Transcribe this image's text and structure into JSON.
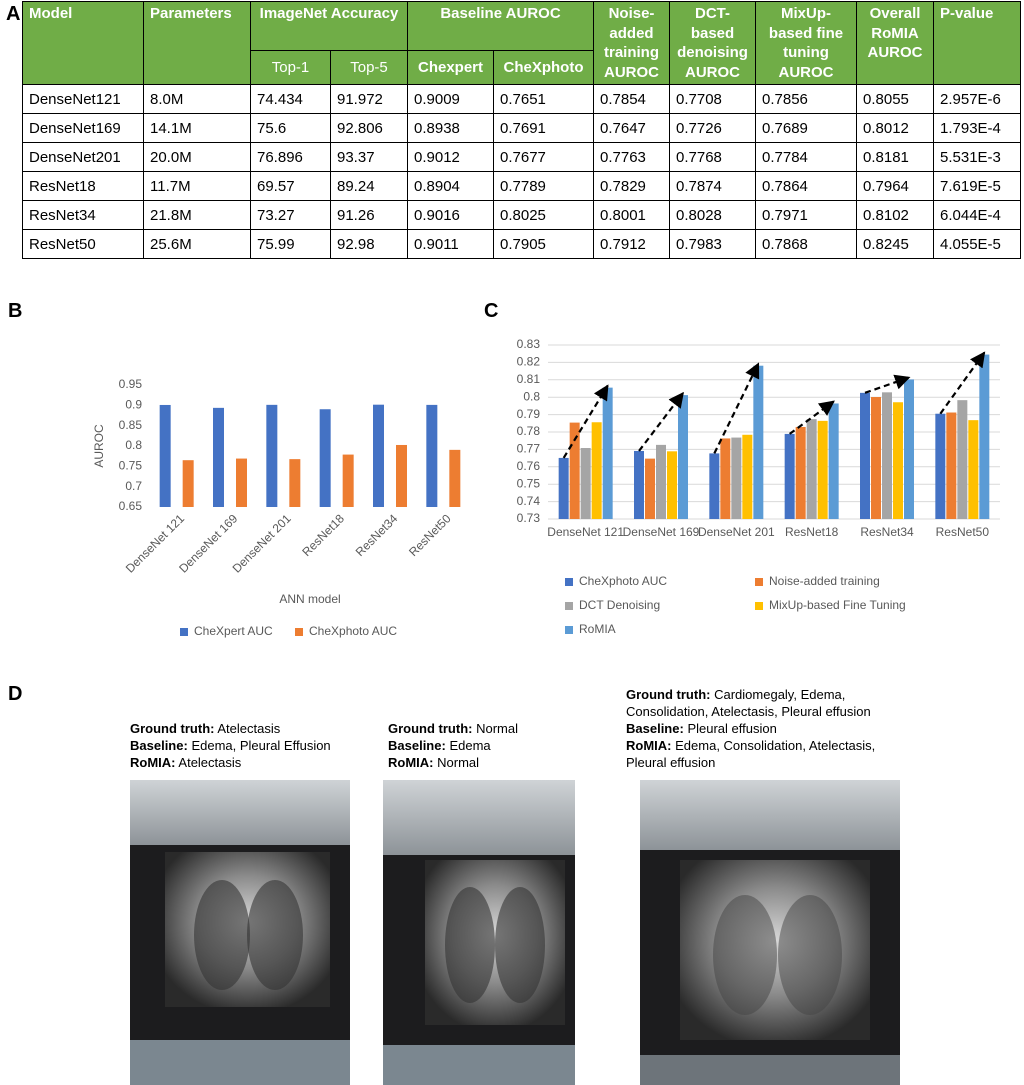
{
  "panel_labels": [
    "A",
    "B",
    "C",
    "D"
  ],
  "table": {
    "header_top": [
      "Model",
      "Parameters",
      "ImageNet Accuracy",
      "Baseline AUROC",
      "Noise-added training AUROC",
      "DCT-based denoising AUROC",
      "MixUp-based fine tuning AUROC",
      "Overall RoMIA AUROC",
      "P-value"
    ],
    "header_sub": [
      "Top-1",
      "Top-5",
      "Chexpert",
      "CheXphoto"
    ],
    "rows": [
      [
        "DenseNet121",
        "8.0M",
        "74.434",
        "91.972",
        "0.9009",
        "0.7651",
        "0.7854",
        "0.7708",
        "0.7856",
        "0.8055",
        "2.957E-6"
      ],
      [
        "DenseNet169",
        "14.1M",
        "75.6",
        "92.806",
        "0.8938",
        "0.7691",
        "0.7647",
        "0.7726",
        "0.7689",
        "0.8012",
        "1.793E-4"
      ],
      [
        "DenseNet201",
        "20.0M",
        "76.896",
        "93.37",
        "0.9012",
        "0.7677",
        "0.7763",
        "0.7768",
        "0.7784",
        "0.8181",
        "5.531E-3"
      ],
      [
        "ResNet18",
        "11.7M",
        "69.57",
        "89.24",
        "0.8904",
        "0.7789",
        "0.7829",
        "0.7874",
        "0.7864",
        "0.7964",
        "7.619E-5"
      ],
      [
        "ResNet34",
        "21.8M",
        "73.27",
        "91.26",
        "0.9016",
        "0.8025",
        "0.8001",
        "0.8028",
        "0.7971",
        "0.8102",
        "6.044E-4"
      ],
      [
        "ResNet50",
        "25.6M",
        "75.99",
        "92.98",
        "0.9011",
        "0.7905",
        "0.7912",
        "0.7983",
        "0.7868",
        "0.8245",
        "4.055E-5"
      ]
    ]
  },
  "chart_data": [
    {
      "type": "bar",
      "x_label": "ANN model",
      "y_label": "AUROC",
      "categories": [
        "DenseNet 121",
        "DenseNet 169",
        "DenseNet 201",
        "ResNet18",
        "ResNet34",
        "ResNet50"
      ],
      "series": [
        {
          "name": "CheXpert AUC",
          "color": "#4472c4",
          "values": [
            0.9009,
            0.8938,
            0.9012,
            0.8904,
            0.9016,
            0.9011
          ]
        },
        {
          "name": "CheXphoto AUC",
          "color": "#ed7d31",
          "values": [
            0.7651,
            0.7691,
            0.7677,
            0.7789,
            0.8025,
            0.7905
          ]
        }
      ],
      "ylim": [
        0.65,
        0.95
      ],
      "yticks": [
        0.65,
        0.7,
        0.75,
        0.8,
        0.85,
        0.9,
        0.95
      ],
      "grid": false,
      "legend": "bottom"
    },
    {
      "type": "bar",
      "categories": [
        "DenseNet 121",
        "DenseNet 169",
        "DenseNet 201",
        "ResNet18",
        "ResNet34",
        "ResNet50"
      ],
      "series": [
        {
          "name": "CheXphoto AUC",
          "color": "#4472c4",
          "values": [
            0.7651,
            0.7691,
            0.7677,
            0.7789,
            0.8025,
            0.7905
          ]
        },
        {
          "name": "Noise-added training",
          "color": "#ed7d31",
          "values": [
            0.7854,
            0.7647,
            0.7763,
            0.7829,
            0.8001,
            0.7912
          ]
        },
        {
          "name": "DCT Denoising",
          "color": "#a5a5a5",
          "values": [
            0.7708,
            0.7726,
            0.7768,
            0.7874,
            0.8028,
            0.7983
          ]
        },
        {
          "name": "MixUp-based Fine Tuning",
          "color": "#ffc000",
          "values": [
            0.7856,
            0.7689,
            0.7784,
            0.7864,
            0.7971,
            0.7868
          ]
        },
        {
          "name": "RoMIA",
          "color": "#5b9bd5",
          "values": [
            0.8055,
            0.8012,
            0.8181,
            0.7964,
            0.8102,
            0.8245
          ]
        }
      ],
      "ylim": [
        0.73,
        0.83
      ],
      "yticks": [
        0.73,
        0.74,
        0.75,
        0.76,
        0.77,
        0.78,
        0.79,
        0.8,
        0.81,
        0.82,
        0.83
      ],
      "grid": true,
      "legend": "bottom",
      "arrows": true
    }
  ],
  "panel_d": [
    {
      "lines": [
        {
          "label": "Ground truth:",
          "text": "Atelectasis"
        },
        {
          "label": "Baseline:",
          "text": "Edema, Pleural Effusion"
        },
        {
          "label": "RoMIA:",
          "text": "Atelectasis"
        }
      ]
    },
    {
      "lines": [
        {
          "label": "Ground truth:",
          "text": "Normal"
        },
        {
          "label": "Baseline:",
          "text": "Edema"
        },
        {
          "label": "RoMIA:",
          "text": "Normal"
        }
      ]
    },
    {
      "lines": [
        {
          "label": "Ground truth:",
          "text": "Cardiomegaly, Edema, Consolidation, Atelectasis, Pleural effusion"
        },
        {
          "label": "Baseline:",
          "text": "Pleural effusion"
        },
        {
          "label": "RoMIA:",
          "text": "Edema, Consolidation, Atelectasis, Pleural effusion"
        }
      ]
    }
  ]
}
